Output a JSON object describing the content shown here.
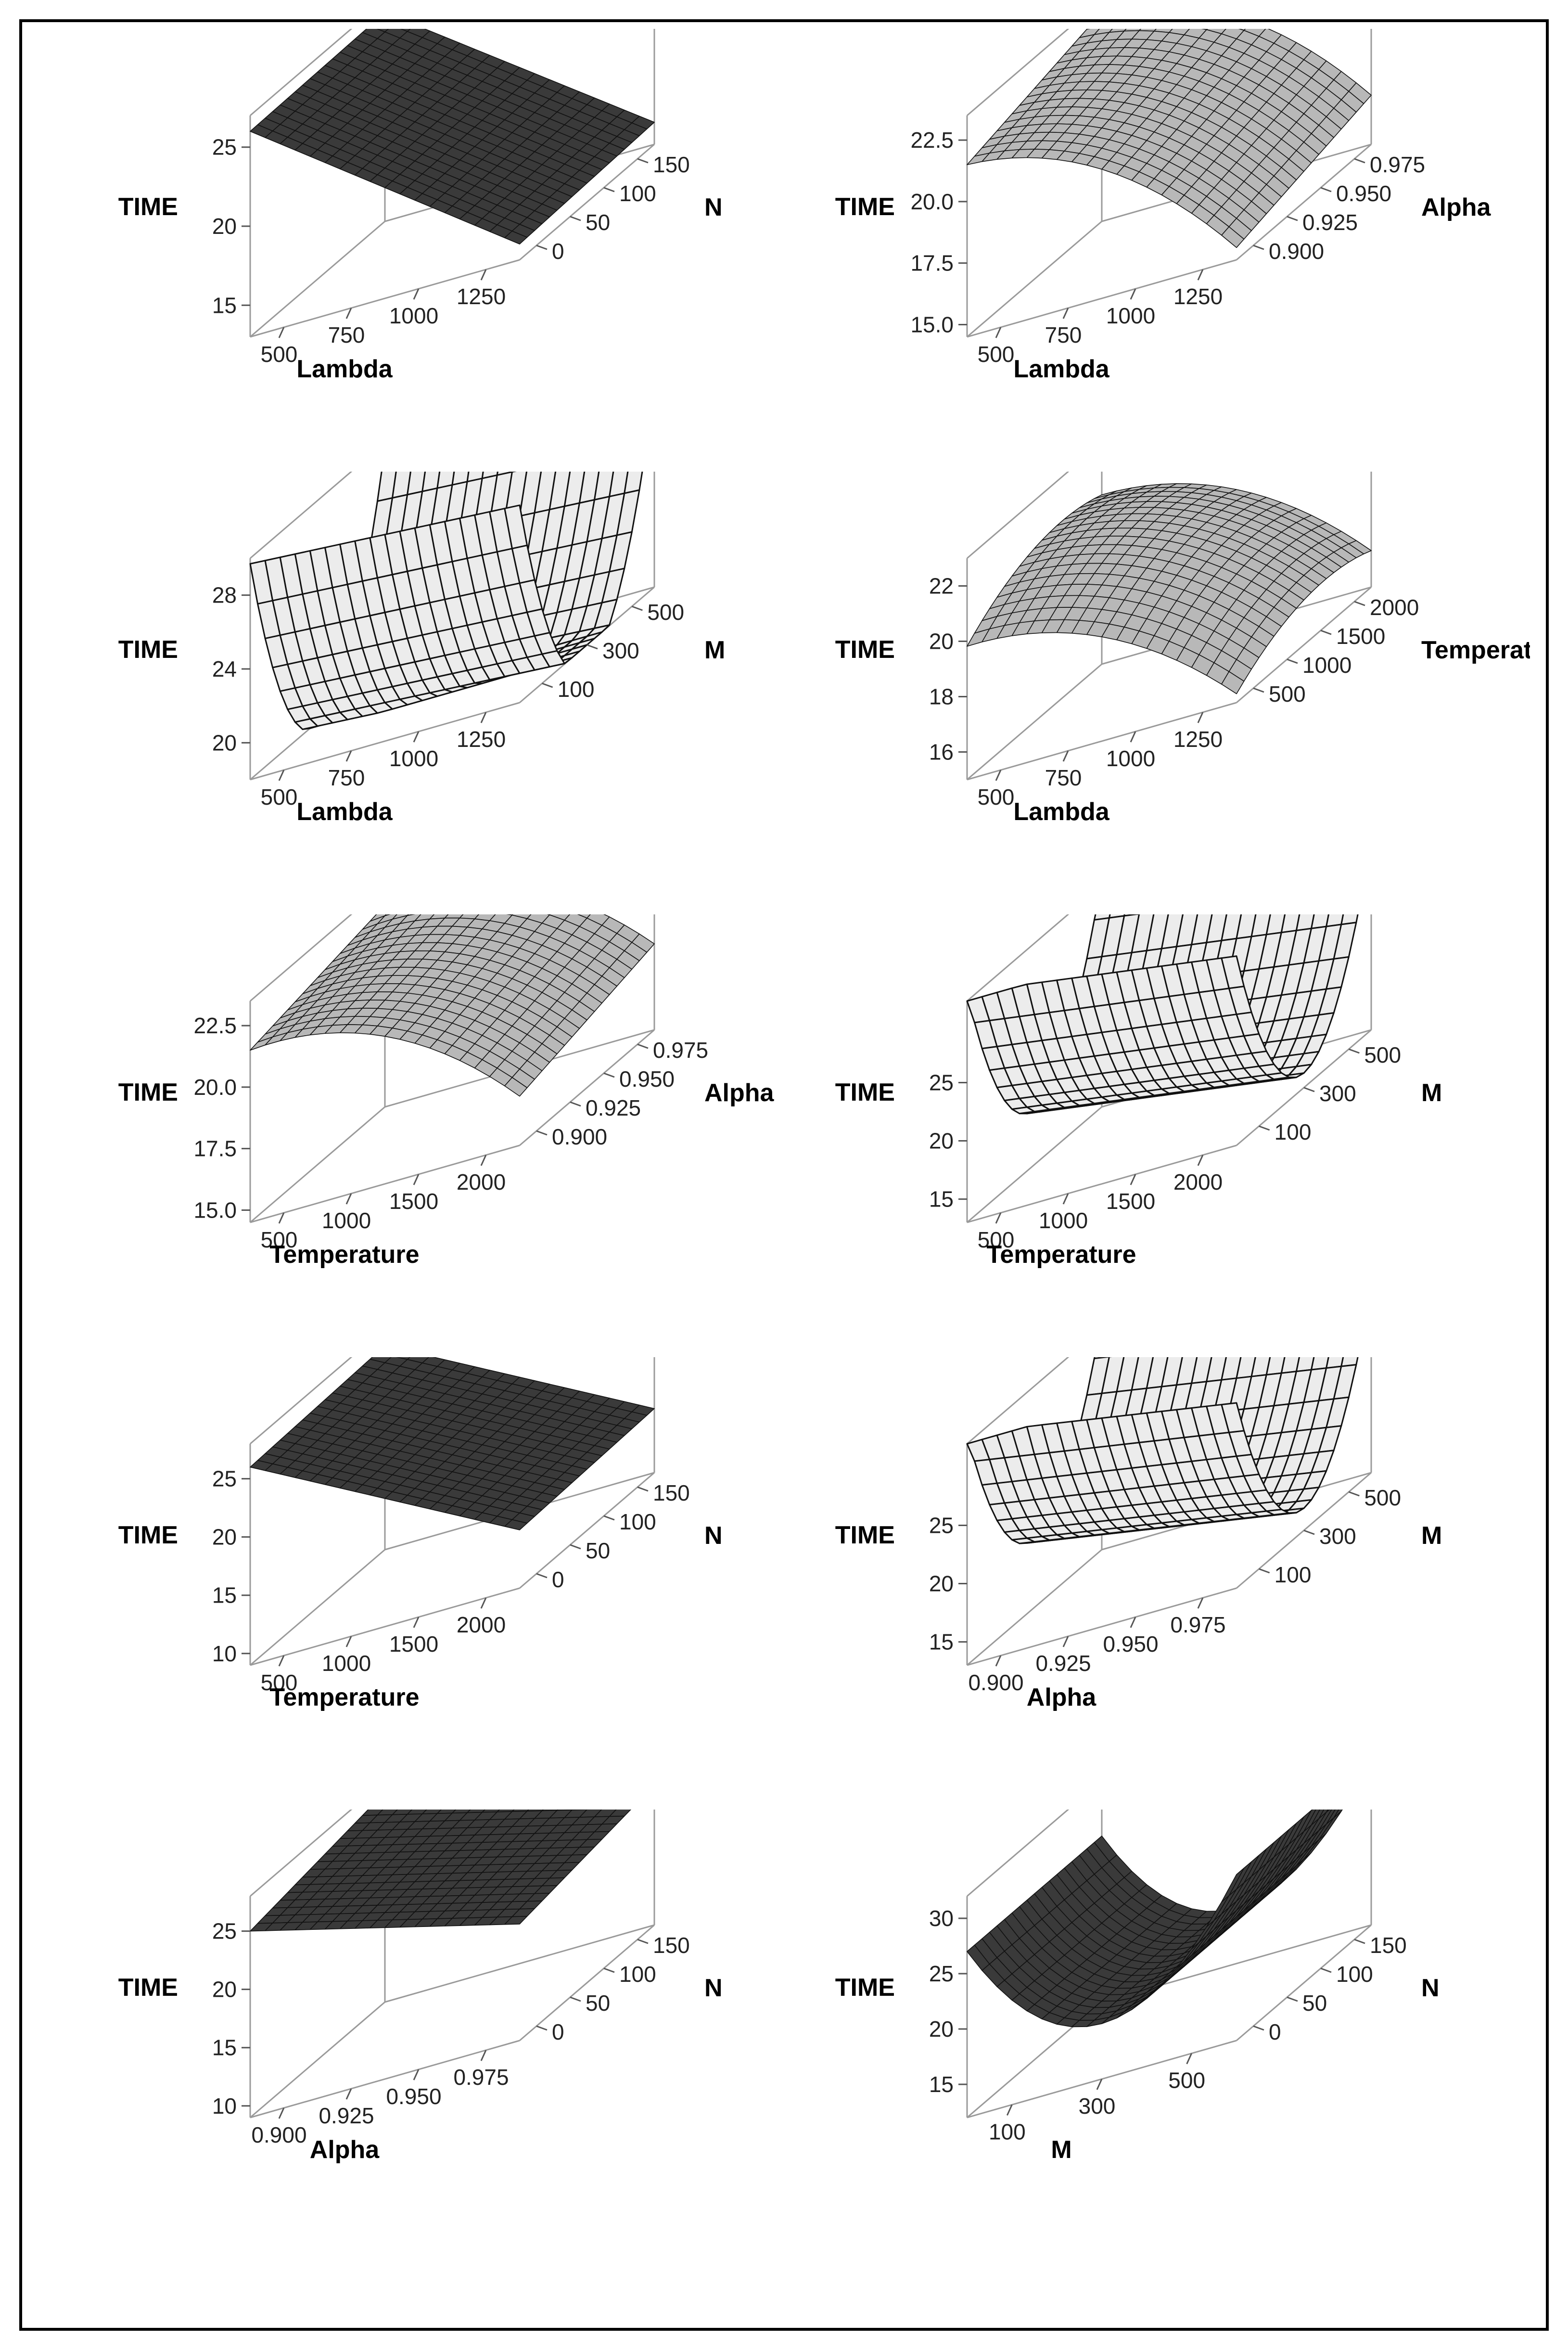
{
  "chart_data": [
    {
      "type": "surface",
      "zlabel": "TIME",
      "xlabel": "Lambda",
      "ylabel": "N",
      "xticks": [
        "500",
        "750",
        "1000",
        "1250"
      ],
      "yticks": [
        "0",
        "50",
        "100",
        "150"
      ],
      "zticks": [
        "15",
        "20",
        "25"
      ],
      "zlim": [
        13,
        27
      ],
      "surface": {
        "z00": 26,
        "z10": 14,
        "z01": 26.2,
        "z11": 14.4,
        "qx": 0,
        "qy": 0
      },
      "shade": "dark"
    },
    {
      "type": "surface",
      "zlabel": "TIME",
      "xlabel": "Lambda",
      "ylabel": "Alpha",
      "xticks": [
        "500",
        "750",
        "1000",
        "1250"
      ],
      "yticks": [
        "0.900",
        "0.925",
        "0.950",
        "0.975"
      ],
      "zticks": [
        "15.0",
        "17.5",
        "20.0",
        "22.5"
      ],
      "zlim": [
        14.5,
        23.5
      ],
      "surface": {
        "z00": 21.5,
        "z10": 15,
        "z01": 23,
        "z11": 16.5,
        "qx": -1.5,
        "qy": 0
      },
      "shade": "mid"
    },
    {
      "type": "surface",
      "zlabel": "TIME",
      "xlabel": "Lambda",
      "ylabel": "M",
      "xticks": [
        "500",
        "750",
        "1000",
        "1250"
      ],
      "yticks": [
        "100",
        "300",
        "500"
      ],
      "zticks": [
        "20",
        "24",
        "28"
      ],
      "zlim": [
        18,
        30
      ],
      "surface": {
        "z00": 19.5,
        "z10": 18.5,
        "z01": 19.5,
        "z11": 18.5,
        "qx": 0,
        "qy": 12
      },
      "shade": "light"
    },
    {
      "type": "surface",
      "zlabel": "TIME",
      "xlabel": "Lambda",
      "ylabel": "Temperature",
      "xticks": [
        "500",
        "750",
        "1000",
        "1250"
      ],
      "yticks": [
        "500",
        "1000",
        "1500",
        "2000"
      ],
      "zticks": [
        "16",
        "18",
        "20",
        "22"
      ],
      "zlim": [
        15,
        23
      ],
      "surface": {
        "z00": 20.5,
        "z10": 16,
        "z01": 21.8,
        "z11": 17,
        "qx": -1.2,
        "qy": -0.8
      },
      "shade": "mid"
    },
    {
      "type": "surface",
      "zlabel": "TIME",
      "xlabel": "Temperature",
      "ylabel": "Alpha",
      "xticks": [
        "500",
        "1000",
        "1500",
        "2000"
      ],
      "yticks": [
        "0.900",
        "0.925",
        "0.950",
        "0.975"
      ],
      "zticks": [
        "15.0",
        "17.5",
        "20.0",
        "22.5"
      ],
      "zlim": [
        14.5,
        23.5
      ],
      "surface": {
        "z00": 21.5,
        "z10": 16.5,
        "z01": 22.7,
        "z11": 18,
        "qx": -1.5,
        "qy": 0
      },
      "shade": "mid"
    },
    {
      "type": "surface",
      "zlabel": "TIME",
      "xlabel": "Temperature",
      "ylabel": "M",
      "xticks": [
        "500",
        "1000",
        "1500",
        "2000"
      ],
      "yticks": [
        "100",
        "300",
        "500"
      ],
      "zticks": [
        "15",
        "20",
        "25"
      ],
      "zlim": [
        13,
        32
      ],
      "surface": {
        "z00": 20,
        "z10": 16.5,
        "z01": 20,
        "z11": 16.5,
        "qx": 0,
        "qy": 15
      },
      "shade": "light"
    },
    {
      "type": "surface",
      "zlabel": "TIME",
      "xlabel": "Temperature",
      "ylabel": "N",
      "xticks": [
        "500",
        "1000",
        "1500",
        "2000"
      ],
      "yticks": [
        "0",
        "50",
        "100",
        "150"
      ],
      "zticks": [
        "10",
        "15",
        "20",
        "25"
      ],
      "zlim": [
        9,
        28
      ],
      "surface": {
        "z00": 26,
        "z10": 14,
        "z01": 26.5,
        "z11": 14.5,
        "qx": 0,
        "qy": 0
      },
      "shade": "dark"
    },
    {
      "type": "surface",
      "zlabel": "TIME",
      "xlabel": "Alpha",
      "ylabel": "M",
      "xticks": [
        "0.900",
        "0.925",
        "0.950",
        "0.975"
      ],
      "yticks": [
        "100",
        "300",
        "500"
      ],
      "zticks": [
        "15",
        "20",
        "25"
      ],
      "zlim": [
        13,
        32
      ],
      "surface": {
        "z00": 21,
        "z10": 17,
        "z01": 21,
        "z11": 17,
        "qx": 0,
        "qy": 14
      },
      "shade": "light"
    },
    {
      "type": "surface",
      "zlabel": "TIME",
      "xlabel": "Alpha",
      "ylabel": "N",
      "xticks": [
        "0.900",
        "0.925",
        "0.950",
        "0.975"
      ],
      "yticks": [
        "0",
        "50",
        "100",
        "150"
      ],
      "zticks": [
        "10",
        "15",
        "20",
        "25"
      ],
      "zlim": [
        9,
        28
      ],
      "surface": {
        "z00": 25,
        "z10": 19,
        "z01": 27,
        "z11": 21,
        "qx": 0,
        "qy": 0
      },
      "shade": "dark"
    },
    {
      "type": "surface",
      "zlabel": "TIME",
      "xlabel": "M",
      "ylabel": "N",
      "xticks": [
        "100",
        "300",
        "500"
      ],
      "yticks": [
        "0",
        "50",
        "100",
        "150"
      ],
      "zticks": [
        "15",
        "20",
        "25",
        "30"
      ],
      "zlim": [
        12,
        32
      ],
      "surface": {
        "z00": 23,
        "z10": 23,
        "z01": 23,
        "z11": 23,
        "qx": 5,
        "qy": 0
      },
      "shade": "dark"
    }
  ]
}
